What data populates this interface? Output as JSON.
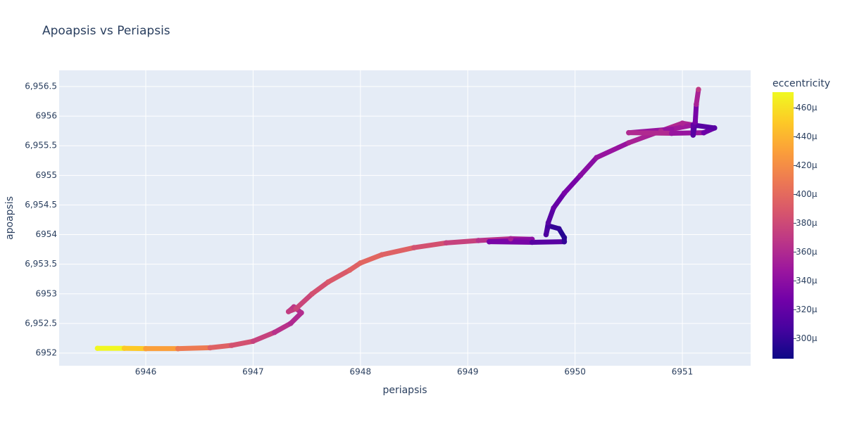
{
  "chart_data": {
    "type": "scatter",
    "title": "Apoapsis vs Periapsis",
    "x_label": "periapsis",
    "y_label": "apoapsis",
    "colorbar_title": "eccentricity",
    "x": [
      6945.55,
      6945.8,
      6946.0,
      6946.3,
      6946.6,
      6946.8,
      6947.0,
      6947.2,
      6947.35,
      6947.45,
      6947.38,
      6947.33,
      6947.4,
      6947.55,
      6947.7,
      6947.9,
      6948.0,
      6948.2,
      6948.5,
      6948.8,
      6949.1,
      6949.4,
      6949.6,
      6949.2,
      6949.6,
      6949.9,
      6949.9,
      6949.85,
      6949.75,
      6949.73,
      6949.75,
      6949.8,
      6949.9,
      6950.05,
      6950.2,
      6950.5,
      6950.8,
      6951.0,
      6951.1,
      6950.9,
      6950.5,
      6950.9,
      6951.2,
      6951.3,
      6951.1,
      6951.1,
      6951.12,
      6951.13,
      6951.15
    ],
    "y": [
      6952.08,
      6952.08,
      6952.075,
      6952.075,
      6952.09,
      6952.13,
      6952.2,
      6952.35,
      6952.5,
      6952.68,
      6952.78,
      6952.7,
      6952.75,
      6953.0,
      6953.2,
      6953.4,
      6953.52,
      6953.66,
      6953.78,
      6953.86,
      6953.9,
      6953.93,
      6953.92,
      6953.88,
      6953.87,
      6953.88,
      6953.95,
      6954.1,
      6954.15,
      6954.0,
      6954.2,
      6954.45,
      6954.7,
      6955.0,
      6955.3,
      6955.55,
      6955.75,
      6955.88,
      6955.85,
      6955.78,
      6955.72,
      6955.71,
      6955.72,
      6955.8,
      6955.85,
      6955.68,
      6955.9,
      6956.2,
      6956.45
    ],
    "color_values": [
      0.00047,
      0.00045,
      0.00043,
      0.00041,
      0.000395,
      0.000385,
      0.000375,
      0.000365,
      0.00036,
      0.000362,
      0.000368,
      0.000372,
      0.000378,
      0.000385,
      0.00039,
      0.000395,
      0.000398,
      0.000395,
      0.000385,
      0.000375,
      0.000365,
      0.000355,
      0.00034,
      0.00033,
      0.000315,
      0.0003,
      0.000295,
      0.0003,
      0.000305,
      0.00031,
      0.000315,
      0.000322,
      0.00033,
      0.000338,
      0.000345,
      0.000355,
      0.00036,
      0.000358,
      0.00035,
      0.000345,
      0.00036,
      0.000345,
      0.000325,
      0.000315,
      0.00032,
      0.000315,
      0.00033,
      0.000355,
      0.00037
    ],
    "xlim": [
      6945.193,
      6951.636
    ],
    "ylim": [
      6951.786,
      6956.773
    ],
    "clim": [
      0.000286,
      0.000471
    ],
    "xticks": [
      6946,
      6947,
      6948,
      6949,
      6950,
      6951
    ],
    "yticks": [
      6952,
      {
        "value": 6952.5,
        "label": "6,952.5"
      },
      6953,
      {
        "value": 6953.5,
        "label": "6,953.5"
      },
      6954,
      {
        "value": 6954.5,
        "label": "6,954.5"
      },
      6955,
      {
        "value": 6955.5,
        "label": "6,955.5"
      },
      6956,
      {
        "value": 6956.5,
        "label": "6,956.5"
      }
    ],
    "cticks": [
      {
        "value": 0.0003,
        "label": "300µ"
      },
      {
        "value": 0.00032,
        "label": "320µ"
      },
      {
        "value": 0.00034,
        "label": "340µ"
      },
      {
        "value": 0.00036,
        "label": "360µ"
      },
      {
        "value": 0.00038,
        "label": "380µ"
      },
      {
        "value": 0.0004,
        "label": "400µ"
      },
      {
        "value": 0.00042,
        "label": "420µ"
      },
      {
        "value": 0.00044,
        "label": "440µ"
      },
      {
        "value": 0.00046,
        "label": "460µ"
      }
    ],
    "colorscale": [
      "#0d0887",
      "#46039f",
      "#7201a8",
      "#9c179e",
      "#bd3786",
      "#d8576b",
      "#ed7953",
      "#fb9f3a",
      "#fdca26",
      "#f0f921"
    ],
    "grid": true
  }
}
